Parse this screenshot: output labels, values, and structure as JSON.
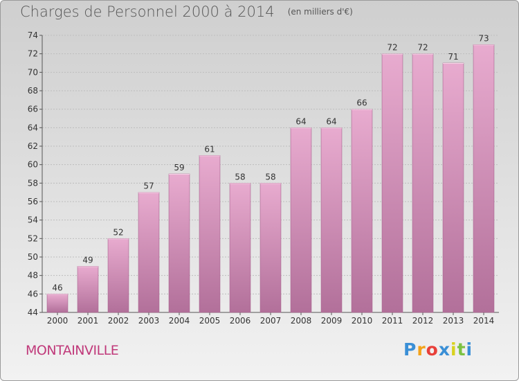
{
  "header": {
    "title": "Charges de Personnel 2000 à 2014",
    "subtitle": "(en milliers d'€)"
  },
  "footer": {
    "commune": "MONTAINVILLE",
    "logo_text": "Proxiti",
    "logo_colors": [
      "#3a8fd6",
      "#f4a31a",
      "#e8403a",
      "#3a8fd6",
      "#d9d21f",
      "#7cc242",
      "#3a8fd6"
    ]
  },
  "chart_data": {
    "type": "bar",
    "categories": [
      "2000",
      "2001",
      "2002",
      "2003",
      "2004",
      "2005",
      "2006",
      "2007",
      "2008",
      "2009",
      "2010",
      "2011",
      "2012",
      "2013",
      "2014"
    ],
    "values": [
      46,
      49,
      52,
      57,
      59,
      61,
      58,
      58,
      64,
      64,
      66,
      72,
      72,
      71,
      73
    ],
    "data_labels": [
      "46",
      "49",
      "52",
      "57",
      "59",
      "61",
      "58",
      "58",
      "64",
      "64",
      "66",
      "72",
      "72",
      "71",
      "73"
    ],
    "ylim": [
      44,
      74
    ],
    "yticks": [
      "44",
      "46",
      "48",
      "50",
      "52",
      "54",
      "56",
      "58",
      "60",
      "62",
      "64",
      "66",
      "68",
      "70",
      "72",
      "74"
    ],
    "grid": true,
    "bar_color": "#d68fb8",
    "bar_color_light": "#e8abcf",
    "bar_color_dark": "#b2709a"
  }
}
